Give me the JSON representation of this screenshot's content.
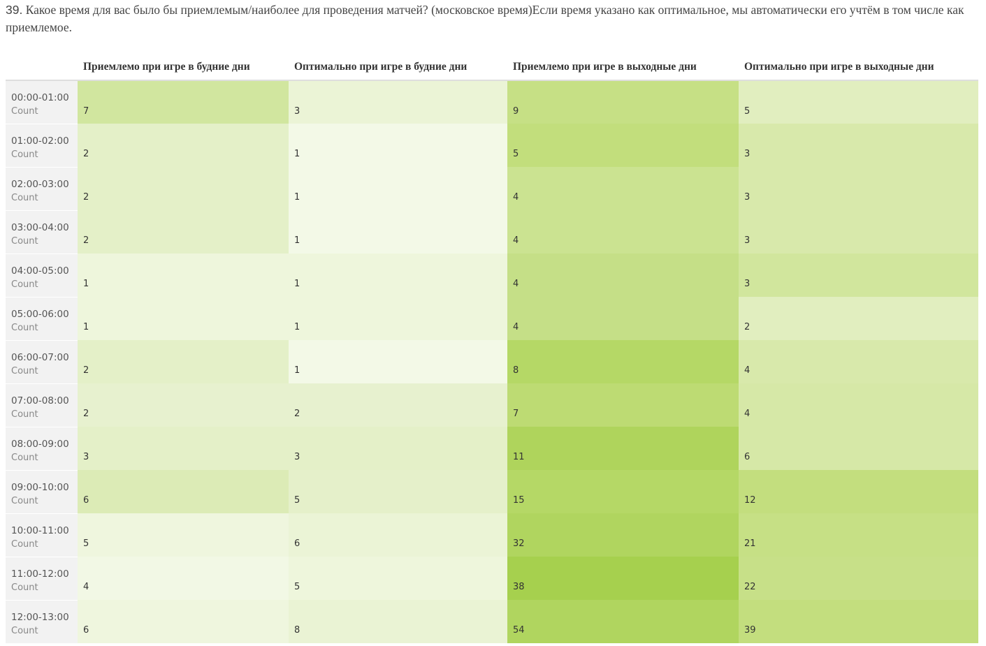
{
  "question": {
    "number": "39.",
    "text": " Какое время для вас было бы приемлемым/наиболее для проведения матчей? (московское время)Если время указано как оптимальное, мы автоматически его учтём в том числе как приемлемое."
  },
  "table": {
    "columns": [
      "Приемлемо при игре в будние дни",
      "Оптимально при игре в будние дни",
      "Приемлемо при игре в выходные дни",
      "Оптимально при игре в выходные дни"
    ],
    "rows": [
      {
        "label": "00:00-01:00",
        "sub": "Count",
        "values": [
          "7",
          "3",
          "9",
          "5"
        ],
        "colors": [
          "#d1e69f",
          "#ebf4d6",
          "#c6e085",
          "#e1eebf"
        ]
      },
      {
        "label": "01:00-02:00",
        "sub": "Count",
        "values": [
          "2",
          "1",
          "5",
          "3"
        ],
        "colors": [
          "#e4f0c8",
          "#f3f9e7",
          "#c2de7c",
          "#d8e9ab"
        ]
      },
      {
        "label": "02:00-03:00",
        "sub": "Count",
        "values": [
          "2",
          "1",
          "4",
          "3"
        ],
        "colors": [
          "#e4f0c8",
          "#f3f9e7",
          "#cbe391",
          "#d8e9ab"
        ]
      },
      {
        "label": "03:00-04:00",
        "sub": "Count",
        "values": [
          "2",
          "1",
          "4",
          "3"
        ],
        "colors": [
          "#e4f0c8",
          "#f3f9e7",
          "#cbe391",
          "#d8e9ab"
        ]
      },
      {
        "label": "04:00-05:00",
        "sub": "Count",
        "values": [
          "1",
          "1",
          "4",
          "3"
        ],
        "colors": [
          "#eef6dc",
          "#eef6dc",
          "#c5df87",
          "#d1e69d"
        ]
      },
      {
        "label": "05:00-06:00",
        "sub": "Count",
        "values": [
          "1",
          "1",
          "4",
          "2"
        ],
        "colors": [
          "#eef6dc",
          "#eef6dc",
          "#c5df87",
          "#e1eebf"
        ]
      },
      {
        "label": "06:00-07:00",
        "sub": "Count",
        "values": [
          "2",
          "1",
          "8",
          "4"
        ],
        "colors": [
          "#e4f0c8",
          "#f3f9e7",
          "#b5d866",
          "#d8e9ab"
        ]
      },
      {
        "label": "07:00-08:00",
        "sub": "Count",
        "values": [
          "2",
          "2",
          "7",
          "4"
        ],
        "colors": [
          "#e7f1cf",
          "#e7f1cf",
          "#bddb73",
          "#d6e8a7"
        ]
      },
      {
        "label": "08:00-09:00",
        "sub": "Count",
        "values": [
          "3",
          "3",
          "11",
          "6"
        ],
        "colors": [
          "#e4f0c8",
          "#e4f0c8",
          "#afd45c",
          "#d6e8a7"
        ]
      },
      {
        "label": "09:00-10:00",
        "sub": "Count",
        "values": [
          "6",
          "5",
          "15",
          "12"
        ],
        "colors": [
          "#dcebb6",
          "#e5f0ca",
          "#b5d866",
          "#c3de7e"
        ]
      },
      {
        "label": "10:00-11:00",
        "sub": "Count",
        "values": [
          "5",
          "6",
          "32",
          "21"
        ],
        "colors": [
          "#eff6de",
          "#ebf4d6",
          "#b0d55f",
          "#c6e085"
        ]
      },
      {
        "label": "11:00-12:00",
        "sub": "Count",
        "values": [
          "4",
          "5",
          "38",
          "22"
        ],
        "colors": [
          "#f2f8e5",
          "#eef6dc",
          "#a6d04e",
          "#c7e088"
        ]
      },
      {
        "label": "12:00-13:00",
        "sub": "Count",
        "values": [
          "6",
          "8",
          "54",
          "39"
        ],
        "colors": [
          "#eff6de",
          "#eaf3d4",
          "#b0d55f",
          "#c3de7e"
        ]
      }
    ]
  }
}
